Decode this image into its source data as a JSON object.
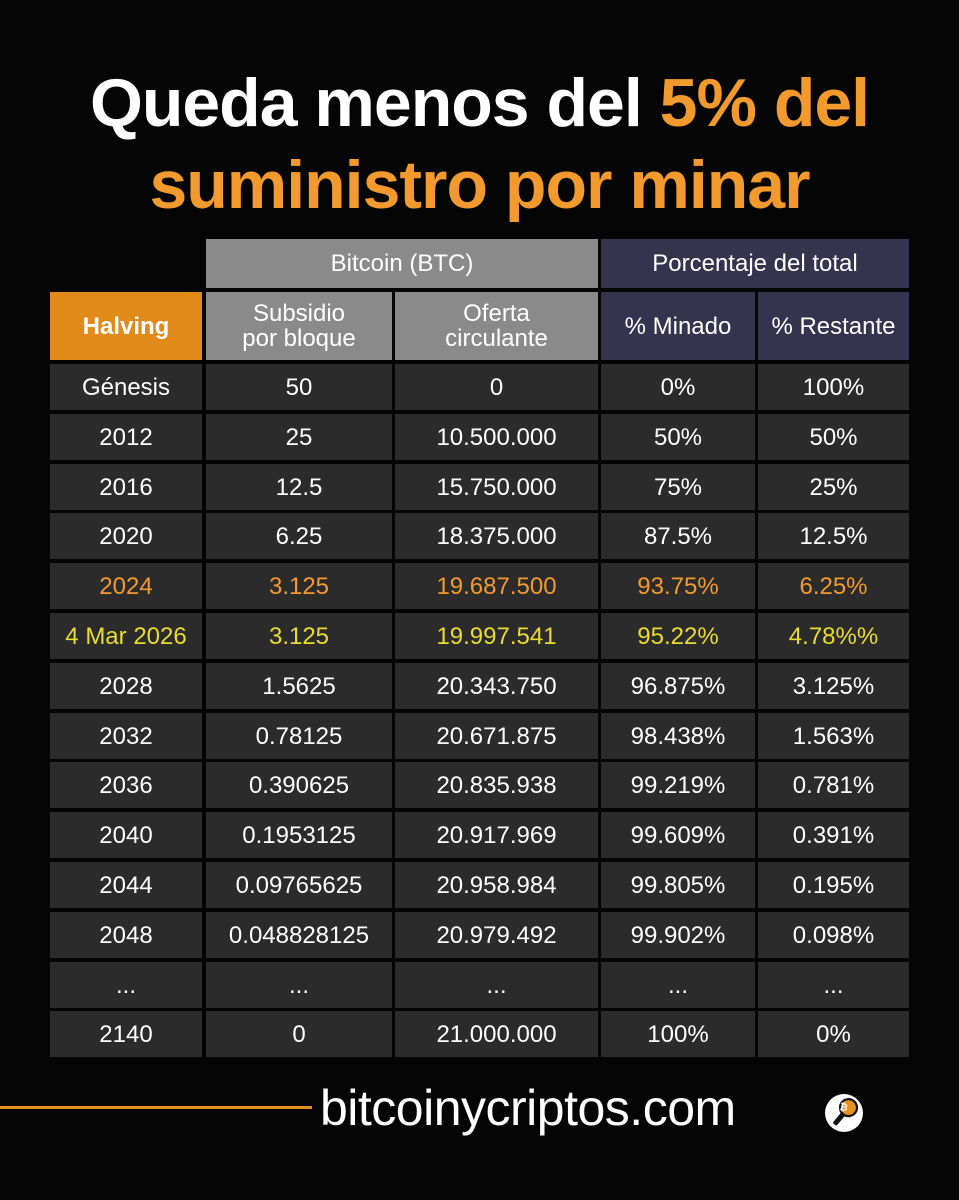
{
  "title": {
    "line1_white": "Queda menos del ",
    "line1_orange": "5% del",
    "line2_orange": "suministro por minar"
  },
  "table": {
    "group_headers": {
      "bitcoin": "Bitcoin (BTC)",
      "percentage": "Porcentaje del total"
    },
    "column_headers": {
      "halving": "Halving",
      "subsidy": "Subsidio\npor bloque",
      "supply": "Oferta\ncirculante",
      "mined": "% Minado",
      "remaining": "% Restante"
    },
    "rows": [
      [
        "Génesis",
        "50",
        "0",
        "0%",
        "100%"
      ],
      [
        "2012",
        "25",
        "10.500.000",
        "50%",
        "50%"
      ],
      [
        "2016",
        "12.5",
        "15.750.000",
        "75%",
        "25%"
      ],
      [
        "2020",
        "6.25",
        "18.375.000",
        "87.5%",
        "12.5%"
      ],
      [
        "2024",
        "3.125",
        "19.687.500",
        "93.75%",
        "6.25%"
      ],
      [
        "4 Mar 2026",
        "3.125",
        "19.997.541",
        "95.22%",
        "4.78%%"
      ],
      [
        "2028",
        "1.5625",
        "20.343.750",
        "96.875%",
        "3.125%"
      ],
      [
        "2032",
        "0.78125",
        "20.671.875",
        "98.438%",
        "1.563%"
      ],
      [
        "2036",
        "0.390625",
        "20.835.938",
        "99.219%",
        "0.781%"
      ],
      [
        "2040",
        "0.1953125",
        "20.917.969",
        "99.609%",
        "0.391%"
      ],
      [
        "2044",
        "0.09765625",
        "20.958.984",
        "99.805%",
        "0.195%"
      ],
      [
        "2048",
        "0.048828125",
        "20.979.492",
        "99.902%",
        "0.098%"
      ],
      [
        "...",
        "...",
        "...",
        "...",
        "..."
      ],
      [
        "2140",
        "0",
        "21.000.000",
        "100%",
        "0%"
      ]
    ]
  },
  "footer": {
    "brand": "bitcoinycriptos.com",
    "icon": "bitcoin-microphone-icon"
  },
  "colors": {
    "orange": "#f29a2e",
    "highlight_yellow": "#eadb2f",
    "btc_header_gray": "#8a8a8a",
    "percent_header_purple": "#36334f",
    "halving_header_orange": "#e08a1a",
    "cell_background": "#2b2b2b"
  }
}
